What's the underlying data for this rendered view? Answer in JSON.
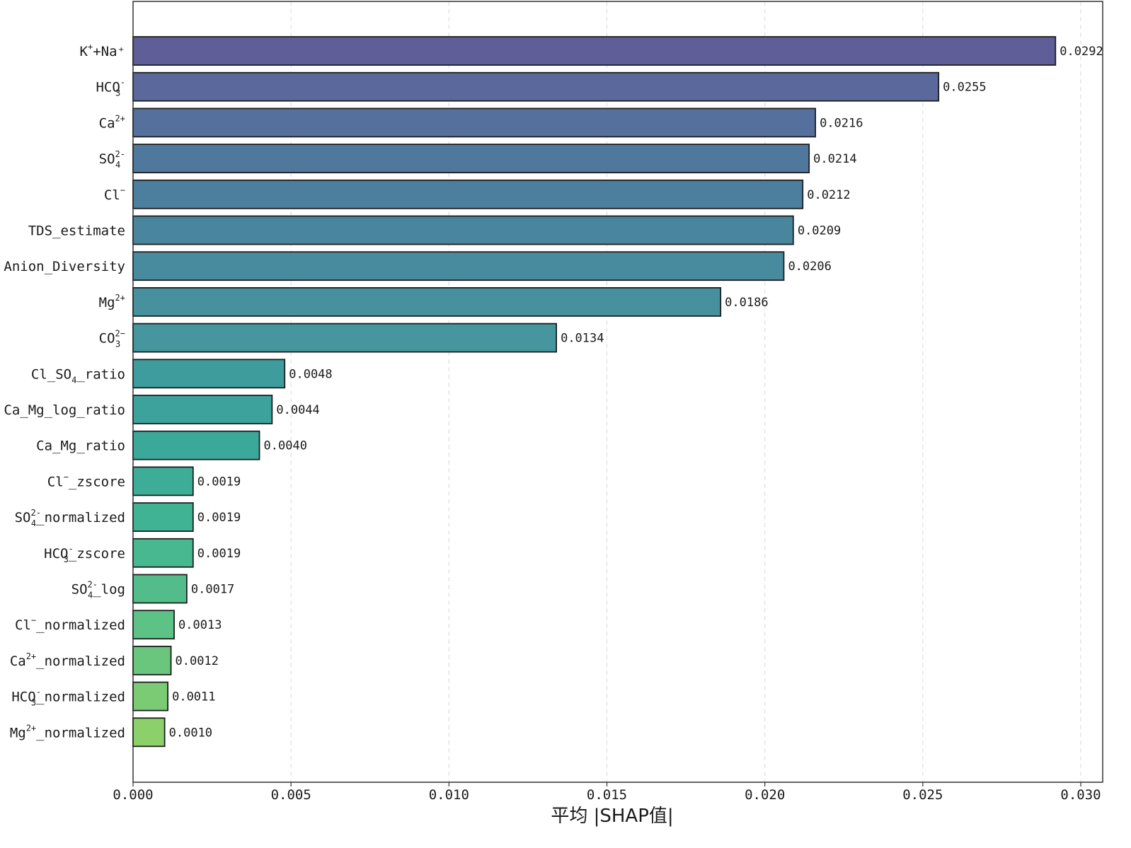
{
  "chart_data": {
    "type": "bar",
    "orientation": "horizontal",
    "xlabel": "平均 |SHAP值|",
    "xlim": [
      0,
      0.0305
    ],
    "xticks": [
      0.0,
      0.005,
      0.01,
      0.015,
      0.02,
      0.025,
      0.03
    ],
    "xtick_labels": [
      "0.000",
      "0.005",
      "0.010",
      "0.015",
      "0.020",
      "0.025",
      "0.030"
    ],
    "grid": "vertical dashed",
    "colormap": "viridis",
    "features": [
      {
        "label": "K⁺+Na⁺",
        "base": "K",
        "sup": "+",
        "sub": "",
        "suffix": "+Na⁺",
        "value": 0.0292,
        "value_label": "0.0292",
        "color": "#5f5e99"
      },
      {
        "label": "HCO₃⁻",
        "base": "HCO",
        "sup": "-",
        "sub": "3",
        "suffix": "",
        "value": 0.0255,
        "value_label": "0.0255",
        "color": "#5a689c"
      },
      {
        "label": "Ca²⁺",
        "base": "Ca",
        "sup": "2+",
        "sub": "",
        "suffix": "",
        "value": 0.0216,
        "value_label": "0.0216",
        "color": "#55709c"
      },
      {
        "label": "SO₄²⁻",
        "base": "SO",
        "sup": "2-",
        "sub": "4",
        "suffix": "",
        "value": 0.0214,
        "value_label": "0.0214",
        "color": "#50789c"
      },
      {
        "label": "Cl⁻",
        "base": "Cl",
        "sup": "−",
        "sub": "",
        "suffix": "",
        "value": 0.0212,
        "value_label": "0.0212",
        "color": "#4c7f9d"
      },
      {
        "label": "TDS_estimate",
        "base": "TDS_estimate",
        "sup": "",
        "sub": "",
        "suffix": "",
        "value": 0.0209,
        "value_label": "0.0209",
        "color": "#4a859e"
      },
      {
        "label": "Anion_Diversity",
        "base": "Anion_Diversity",
        "sup": "",
        "sub": "",
        "suffix": "",
        "value": 0.0206,
        "value_label": "0.0206",
        "color": "#498b9e"
      },
      {
        "label": "Mg²⁺",
        "base": "Mg",
        "sup": "2+",
        "sub": "",
        "suffix": "",
        "value": 0.0186,
        "value_label": "0.0186",
        "color": "#47909e"
      },
      {
        "label": "CO₃²⁻",
        "base": "CO",
        "sup": "2−",
        "sub": "3",
        "suffix": "",
        "value": 0.0134,
        "value_label": "0.0134",
        "color": "#45969e"
      },
      {
        "label": "Cl_SO₄_ratio",
        "base": "Cl_SO",
        "sup": "",
        "sub": "4",
        "suffix": "_ratio",
        "value": 0.0048,
        "value_label": "0.0048",
        "color": "#3e9c9c"
      },
      {
        "label": "Ca_Mg_log_ratio",
        "base": "Ca_Mg_log_ratio",
        "sup": "",
        "sub": "",
        "suffix": "",
        "value": 0.0044,
        "value_label": "0.0044",
        "color": "#3ca29b"
      },
      {
        "label": "Ca_Mg_ratio",
        "base": "Ca_Mg_ratio",
        "sup": "",
        "sub": "",
        "suffix": "",
        "value": 0.004,
        "value_label": "0.0040",
        "color": "#3ca899"
      },
      {
        "label": "Cl⁻_zscore",
        "base": "Cl",
        "sup": "−",
        "sub": "",
        "suffix": "_zscore",
        "value": 0.0019,
        "value_label": "0.0019",
        "color": "#3dad97"
      },
      {
        "label": "SO₄²⁻_normalized",
        "base": "SO",
        "sup": "2-",
        "sub": "4",
        "suffix": "_normalized",
        "value": 0.0019,
        "value_label": "0.0019",
        "color": "#40b394"
      },
      {
        "label": "HCO₃⁻_zscore",
        "base": "HCO",
        "sup": "-",
        "sub": "3",
        "suffix": "_zscore",
        "value": 0.0019,
        "value_label": "0.0019",
        "color": "#48b890"
      },
      {
        "label": "SO₄²⁻_log",
        "base": "SO",
        "sup": "2-",
        "sub": "4",
        "suffix": "_log",
        "value": 0.0017,
        "value_label": "0.0017",
        "color": "#52bd8b"
      },
      {
        "label": "Cl⁻_normalized",
        "base": "Cl",
        "sup": "−",
        "sub": "",
        "suffix": "_normalized",
        "value": 0.0013,
        "value_label": "0.0013",
        "color": "#5dc285"
      },
      {
        "label": "Ca²⁺_normalized",
        "base": "Ca",
        "sup": "2+",
        "sub": "",
        "suffix": "_normalized",
        "value": 0.0012,
        "value_label": "0.0012",
        "color": "#6ac67d"
      },
      {
        "label": "HCO₃⁻_normalized",
        "base": "HCO",
        "sup": "-",
        "sub": "3",
        "suffix": "_normalized",
        "value": 0.0011,
        "value_label": "0.0011",
        "color": "#7acb74"
      },
      {
        "label": "Mg²⁺_normalized",
        "base": "Mg",
        "sup": "2+",
        "sub": "",
        "suffix": "_normalized",
        "value": 0.001,
        "value_label": "0.0010",
        "color": "#8bd06a"
      }
    ]
  }
}
